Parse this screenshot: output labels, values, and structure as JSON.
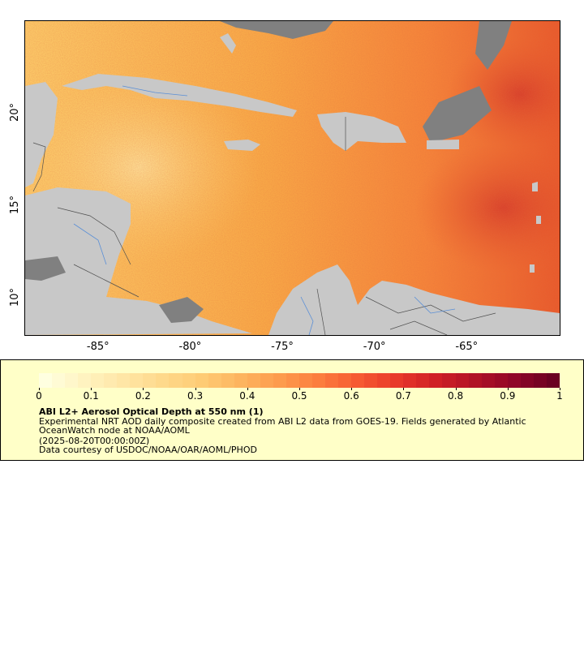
{
  "map": {
    "lon_range": [
      -89,
      -60
    ],
    "lat_range": [
      8,
      25
    ],
    "x_ticks": [
      {
        "lon": -85,
        "label": "-85°"
      },
      {
        "lon": -80,
        "label": "-80°"
      },
      {
        "lon": -75,
        "label": "-75°"
      },
      {
        "lon": -70,
        "label": "-70°"
      },
      {
        "lon": -65,
        "label": "-65°"
      }
    ],
    "y_ticks": [
      {
        "lat": 20,
        "label": "20°"
      },
      {
        "lat": 15,
        "label": "15°"
      },
      {
        "lat": 10,
        "label": "10°"
      }
    ],
    "colors": {
      "land": "#c8c8c8",
      "nodata": "#808080",
      "border": "#505050",
      "river": "#5a8fd6",
      "ocean_base": "#f6b04a"
    }
  },
  "colorbar": {
    "range": [
      0,
      1
    ],
    "tick_labels": [
      "0",
      "0.1",
      "0.2",
      "0.3",
      "0.4",
      "0.5",
      "0.6",
      "0.7",
      "0.8",
      "0.9",
      "1"
    ],
    "colors": [
      "#ffffe0",
      "#fff3c0",
      "#ffe6a6",
      "#fed98b",
      "#fecb74",
      "#fdb45f",
      "#fd9b4d",
      "#fc7d3e",
      "#f65a32",
      "#e8392a",
      "#d01f26",
      "#b01226",
      "#900628",
      "#6a0022"
    ]
  },
  "legend": {
    "title": "ABI L2+ Aerosol Optical Depth at 550 nm (1)",
    "description": "Experimental NRT AOD daily composite created from ABI L2 data from GOES-19. Fields generated by Atlantic OceanWatch node at NOAA/AOML",
    "date": "(2025-08-20T00:00:00Z)",
    "credit": "Data courtesy of USDOC/NOAA/OAR/AOML/PHOD"
  }
}
